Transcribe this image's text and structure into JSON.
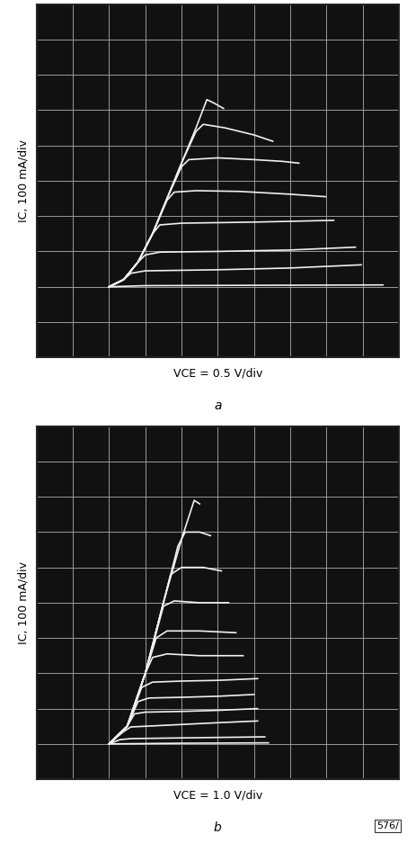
{
  "chart_data": [
    {
      "type": "line",
      "panel_label": "a",
      "x_label": "VCE = 0.5 V/div",
      "y_label": "IC, 100 mA/div",
      "xlim": [
        -1,
        4
      ],
      "ylim": [
        -200,
        800
      ],
      "xticks": [
        -1,
        -0.5,
        0,
        0.5,
        1,
        1.5,
        2,
        2.5,
        3,
        3.5,
        4
      ],
      "yticks": [
        -200,
        -100,
        0,
        100,
        200,
        300,
        400,
        500,
        600,
        700,
        800
      ],
      "grid": true,
      "tick_labels": false,
      "color": "#f0f0f0",
      "series": [
        {
          "x": [
            0,
            0.2,
            0.4,
            0.6,
            0.8,
            1.0,
            1.2,
            1.35,
            1.45,
            1.58
          ],
          "values": [
            0,
            20,
            70,
            150,
            250,
            350,
            450,
            530,
            520,
            505
          ]
        },
        {
          "x": [
            0,
            0.2,
            0.4,
            0.6,
            0.8,
            1.0,
            1.2,
            1.3,
            1.6,
            2.0,
            2.26
          ],
          "values": [
            0,
            20,
            70,
            150,
            250,
            350,
            440,
            460,
            450,
            430,
            412
          ]
        },
        {
          "x": [
            0,
            0.2,
            0.4,
            0.6,
            0.8,
            1.0,
            1.1,
            1.5,
            2.0,
            2.4,
            2.62
          ],
          "values": [
            0,
            20,
            70,
            150,
            250,
            340,
            360,
            365,
            360,
            355,
            350
          ]
        },
        {
          "x": [
            0,
            0.2,
            0.4,
            0.6,
            0.8,
            0.9,
            1.2,
            1.8,
            2.5,
            2.99
          ],
          "values": [
            0,
            20,
            70,
            150,
            245,
            268,
            272,
            270,
            262,
            255
          ]
        },
        {
          "x": [
            0,
            0.2,
            0.4,
            0.6,
            0.7,
            1.0,
            2.0,
            3.1
          ],
          "values": [
            0,
            20,
            70,
            150,
            175,
            180,
            183,
            188
          ]
        },
        {
          "x": [
            0,
            0.2,
            0.4,
            0.5,
            0.7,
            1.5,
            2.5,
            3.4
          ],
          "values": [
            0,
            20,
            70,
            90,
            98,
            100,
            104,
            112
          ]
        },
        {
          "x": [
            0,
            0.2,
            0.3,
            0.5,
            1.5,
            2.5,
            3.48
          ],
          "values": [
            0,
            20,
            38,
            45,
            48,
            53,
            62
          ]
        },
        {
          "x": [
            0,
            0.5,
            2,
            3.78
          ],
          "values": [
            0,
            3,
            4,
            5
          ]
        }
      ]
    },
    {
      "type": "line",
      "panel_label": "b",
      "x_label": "VCE = 1.0 V/div",
      "y_label": "IC, 100 mA/div",
      "annotations": [
        "576/"
      ],
      "xlim": [
        -2,
        8
      ],
      "ylim": [
        -100,
        900
      ],
      "xticks": [
        -2,
        -1,
        0,
        1,
        2,
        3,
        4,
        5,
        6,
        7,
        8
      ],
      "yticks": [
        -100,
        0,
        100,
        200,
        300,
        400,
        500,
        600,
        700,
        800,
        900
      ],
      "grid": true,
      "tick_labels": false,
      "color": "#f0f0f0",
      "series": [
        {
          "x": [
            0,
            0.5,
            1.0,
            1.5,
            2.0,
            2.35,
            2.5
          ],
          "values": [
            0,
            50,
            200,
            400,
            580,
            690,
            680
          ]
        },
        {
          "x": [
            0,
            0.5,
            1.0,
            1.5,
            1.9,
            2.1,
            2.5,
            2.8
          ],
          "values": [
            0,
            50,
            200,
            400,
            560,
            600,
            600,
            590
          ]
        },
        {
          "x": [
            0,
            0.5,
            1.0,
            1.5,
            1.7,
            2.0,
            2.6,
            3.1
          ],
          "values": [
            0,
            50,
            200,
            400,
            480,
            500,
            500,
            490
          ]
        },
        {
          "x": [
            0,
            0.5,
            1.0,
            1.5,
            1.8,
            2.5,
            3.3
          ],
          "values": [
            0,
            50,
            200,
            390,
            405,
            400,
            400
          ]
        },
        {
          "x": [
            0,
            0.5,
            1.0,
            1.3,
            1.6,
            2.5,
            3.5
          ],
          "values": [
            0,
            50,
            200,
            300,
            320,
            320,
            315
          ]
        },
        {
          "x": [
            0,
            0.5,
            1.0,
            1.2,
            1.6,
            2.5,
            3.7
          ],
          "values": [
            0,
            50,
            200,
            245,
            255,
            250,
            250
          ]
        },
        {
          "x": [
            0,
            0.5,
            0.9,
            1.2,
            2.0,
            3.0,
            4.1
          ],
          "values": [
            0,
            50,
            160,
            175,
            178,
            180,
            185
          ]
        },
        {
          "x": [
            0,
            0.5,
            0.8,
            1.1,
            2.0,
            3.0,
            4.0
          ],
          "values": [
            0,
            50,
            120,
            130,
            132,
            135,
            140
          ]
        },
        {
          "x": [
            0,
            0.5,
            0.7,
            1.0,
            2.0,
            3.0,
            4.1
          ],
          "values": [
            0,
            50,
            85,
            90,
            92,
            95,
            100
          ]
        },
        {
          "x": [
            0,
            0.4,
            0.6,
            1.0,
            2.0,
            3.0,
            4.1
          ],
          "values": [
            0,
            35,
            48,
            50,
            55,
            60,
            65
          ]
        },
        {
          "x": [
            0,
            0.3,
            0.6,
            2.0,
            4.3
          ],
          "values": [
            0,
            12,
            15,
            17,
            20
          ]
        },
        {
          "x": [
            0,
            2,
            4.4
          ],
          "values": [
            0,
            2,
            3
          ]
        }
      ]
    }
  ]
}
